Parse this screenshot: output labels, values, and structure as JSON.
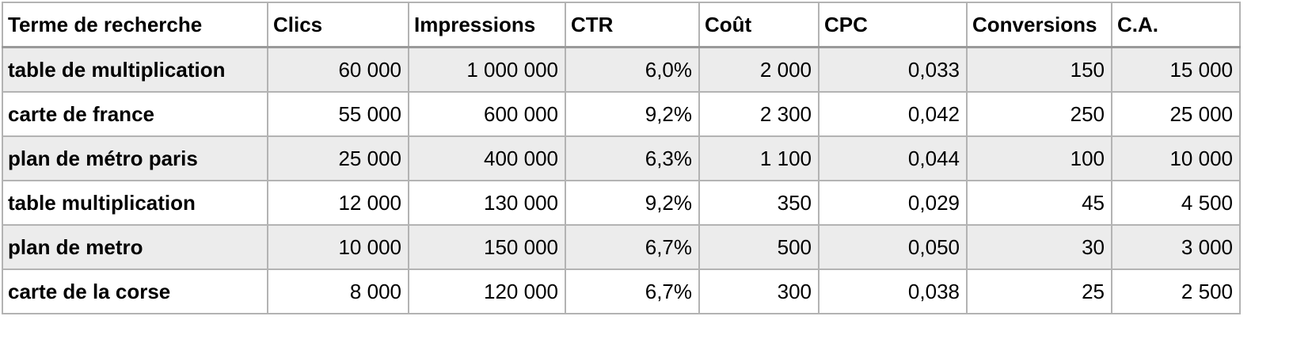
{
  "table": {
    "headers": [
      "Terme de recherche",
      "Clics",
      "Impressions",
      "CTR",
      "Coût",
      "CPC",
      "Conversions",
      "C.A."
    ],
    "rows": [
      [
        "table de multiplication",
        "60 000",
        "1 000 000",
        "6,0%",
        "2 000",
        "0,033",
        "150",
        "15 000"
      ],
      [
        "carte de france",
        "55 000",
        "600 000",
        "9,2%",
        "2 300",
        "0,042",
        "250",
        "25 000"
      ],
      [
        "plan de métro paris",
        "25 000",
        "400 000",
        "6,3%",
        "1 100",
        "0,044",
        "100",
        "10 000"
      ],
      [
        "table multiplication",
        "12 000",
        "130 000",
        "9,2%",
        "350",
        "0,029",
        "45",
        "4 500"
      ],
      [
        "plan de metro",
        "10 000",
        "150 000",
        "6,7%",
        "500",
        "0,050",
        "30",
        "3 000"
      ],
      [
        "carte de la corse",
        "8 000",
        "120 000",
        "6,7%",
        "300",
        "0,038",
        "25",
        "2 500"
      ]
    ]
  },
  "colors": {
    "border": "#b3b3b3",
    "alt_row_background": "#ececec",
    "header_background": "#ffffff",
    "text": "#000000"
  }
}
